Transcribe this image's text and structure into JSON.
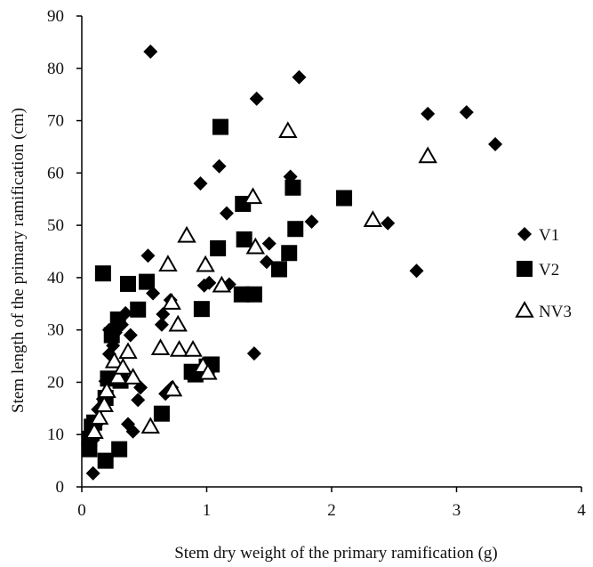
{
  "chart_data": {
    "type": "scatter",
    "title": "",
    "xlabel": "Stem dry weight of the primary ramification (g)",
    "ylabel": "Stem length of the primary ramification (cm)",
    "xlim": [
      0,
      4
    ],
    "ylim": [
      0,
      90
    ],
    "x_ticks": [
      "0",
      "1",
      "2",
      "3",
      "4"
    ],
    "y_ticks": [
      "0",
      "10",
      "20",
      "30",
      "40",
      "50",
      "60",
      "70",
      "80",
      "90"
    ],
    "grid": false,
    "legend_position": "right",
    "series": [
      {
        "name": "V1",
        "marker": "diamond",
        "color": "#000000",
        "points": [
          [
            0.09,
            2.6
          ],
          [
            0.09,
            9.0
          ],
          [
            0.12,
            12.0
          ],
          [
            0.13,
            14.8
          ],
          [
            0.17,
            16.8
          ],
          [
            0.19,
            20.2
          ],
          [
            0.22,
            25.4
          ],
          [
            0.25,
            27.0
          ],
          [
            0.22,
            30.0
          ],
          [
            0.27,
            29.5
          ],
          [
            0.32,
            31.0
          ],
          [
            0.35,
            33.2
          ],
          [
            0.37,
            12.0
          ],
          [
            0.39,
            29.0
          ],
          [
            0.41,
            10.6
          ],
          [
            0.45,
            16.6
          ],
          [
            0.47,
            19.0
          ],
          [
            0.53,
            44.2
          ],
          [
            0.55,
            83.2
          ],
          [
            0.57,
            37.0
          ],
          [
            0.64,
            31.0
          ],
          [
            0.65,
            33.0
          ],
          [
            0.67,
            17.8
          ],
          [
            0.71,
            35.7
          ],
          [
            0.72,
            19.0
          ],
          [
            0.95,
            58.0
          ],
          [
            0.98,
            38.5
          ],
          [
            1.02,
            39.0
          ],
          [
            1.1,
            61.3
          ],
          [
            1.16,
            52.3
          ],
          [
            1.18,
            38.7
          ],
          [
            1.38,
            25.5
          ],
          [
            1.4,
            74.2
          ],
          [
            1.48,
            43.0
          ],
          [
            1.5,
            46.5
          ],
          [
            1.67,
            59.3
          ],
          [
            1.74,
            78.3
          ],
          [
            1.84,
            50.7
          ],
          [
            2.45,
            50.4
          ],
          [
            2.68,
            41.3
          ],
          [
            2.77,
            71.3
          ],
          [
            3.08,
            71.6
          ],
          [
            3.31,
            65.5
          ]
        ]
      },
      {
        "name": "V2",
        "marker": "square",
        "color": "#000000",
        "points": [
          [
            0.06,
            7.2
          ],
          [
            0.06,
            9.2
          ],
          [
            0.08,
            11.5
          ],
          [
            0.1,
            12.3
          ],
          [
            0.17,
            40.8
          ],
          [
            0.19,
            5.0
          ],
          [
            0.19,
            17.0
          ],
          [
            0.21,
            20.7
          ],
          [
            0.24,
            29.0
          ],
          [
            0.29,
            32.0
          ],
          [
            0.3,
            7.2
          ],
          [
            0.31,
            20.3
          ],
          [
            0.37,
            38.8
          ],
          [
            0.45,
            33.9
          ],
          [
            0.52,
            39.2
          ],
          [
            0.64,
            14.0
          ],
          [
            0.88,
            22.0
          ],
          [
            0.91,
            21.5
          ],
          [
            0.96,
            34.0
          ],
          [
            1.0,
            23.0
          ],
          [
            1.04,
            23.4
          ],
          [
            1.09,
            45.6
          ],
          [
            1.11,
            68.8
          ],
          [
            1.28,
            36.8
          ],
          [
            1.29,
            54.1
          ],
          [
            1.3,
            47.3
          ],
          [
            1.38,
            36.8
          ],
          [
            1.58,
            41.6
          ],
          [
            1.66,
            44.7
          ],
          [
            1.69,
            57.2
          ],
          [
            1.71,
            49.3
          ],
          [
            2.1,
            55.2
          ]
        ]
      },
      {
        "name": "NV3",
        "marker": "triangle-open",
        "color": "#000000",
        "points": [
          [
            0.1,
            10.5
          ],
          [
            0.14,
            13.2
          ],
          [
            0.18,
            15.6
          ],
          [
            0.2,
            18.3
          ],
          [
            0.26,
            24.0
          ],
          [
            0.29,
            21.0
          ],
          [
            0.33,
            22.8
          ],
          [
            0.37,
            25.8
          ],
          [
            0.41,
            20.9
          ],
          [
            0.55,
            11.5
          ],
          [
            0.63,
            26.5
          ],
          [
            0.69,
            42.5
          ],
          [
            0.72,
            35.2
          ],
          [
            0.73,
            18.6
          ],
          [
            0.77,
            31.0
          ],
          [
            0.78,
            26.2
          ],
          [
            0.84,
            48.0
          ],
          [
            0.89,
            26.2
          ],
          [
            0.97,
            23.1
          ],
          [
            0.99,
            42.4
          ],
          [
            1.01,
            21.8
          ],
          [
            1.12,
            38.5
          ],
          [
            1.37,
            55.4
          ],
          [
            1.39,
            45.8
          ],
          [
            1.65,
            68.0
          ],
          [
            2.33,
            51.0
          ],
          [
            2.77,
            63.2
          ]
        ]
      }
    ]
  }
}
